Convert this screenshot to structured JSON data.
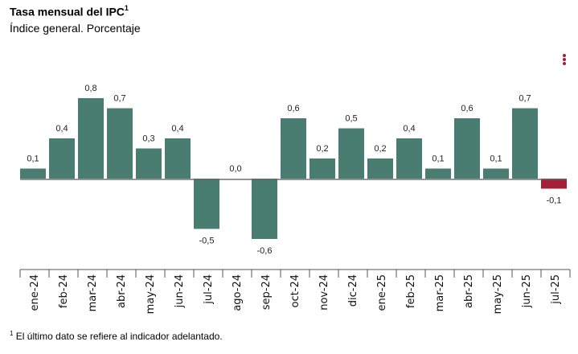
{
  "header": {
    "title": "Tasa mensual del IPC",
    "title_sup": "1",
    "subtitle": "Índice general. Porcentaje"
  },
  "menu": {
    "icon": "kebab-menu-icon"
  },
  "footnote": {
    "sup": "1",
    "text": "El último dato se refiere al indicador adelantado."
  },
  "colors": {
    "bar": "#4a7d72",
    "highlight": "#a31f3a",
    "axis": "#555555"
  },
  "chart_data": {
    "type": "bar",
    "title": "Tasa mensual del IPC",
    "subtitle": "Índice general. Porcentaje",
    "xlabel": "",
    "ylabel": "",
    "ylim": [
      -0.6,
      0.8
    ],
    "grid": false,
    "categories": [
      "ene-24",
      "feb-24",
      "mar-24",
      "abr-24",
      "may-24",
      "jun-24",
      "jul-24",
      "ago-24",
      "sep-24",
      "oct-24",
      "nov-24",
      "dic-24",
      "ene-25",
      "feb-25",
      "mar-25",
      "abr-25",
      "may-25",
      "jun-25",
      "jul-25"
    ],
    "values": [
      0.1,
      0.4,
      0.8,
      0.7,
      0.3,
      0.4,
      -0.5,
      0.0,
      -0.6,
      0.6,
      0.2,
      0.5,
      0.2,
      0.4,
      0.1,
      0.6,
      0.1,
      0.7,
      -0.1
    ],
    "labels": [
      "0,1",
      "0,4",
      "0,8",
      "0,7",
      "0,3",
      "0,4",
      "-0,5",
      "0,0",
      "-0,6",
      "0,6",
      "0,2",
      "0,5",
      "0,2",
      "0,4",
      "0,1",
      "0,6",
      "0,1",
      "0,7",
      "-0,1"
    ],
    "highlighted": [
      "jul-25"
    ]
  }
}
